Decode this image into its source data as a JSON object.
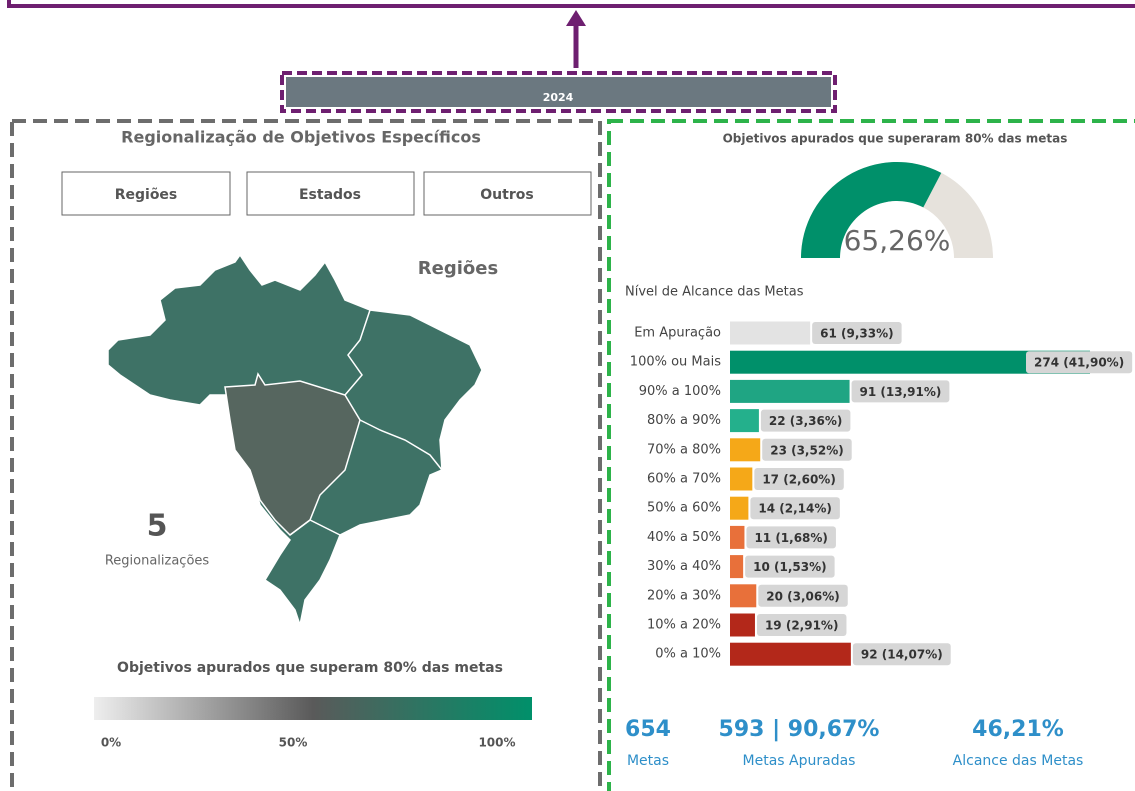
{
  "top_button": {
    "label": "2024"
  },
  "left_panel": {
    "title": "Regionalização de Objetivos Específicos",
    "buttons": [
      "Regiões",
      "Estados",
      "Outros"
    ],
    "map_label": "Regiões",
    "count": "5",
    "count_label": "Regionalizações",
    "legend_title": "Objetivos apurados que superam 80% das metas",
    "legend_ticks": [
      "0%",
      "50%",
      "100%"
    ]
  },
  "chart_data": [
    {
      "type": "gauge",
      "title": "Objetivos apurados que superaram 80% das metas",
      "value": 65.26,
      "value_label": "65,26%",
      "range": [
        0,
        100
      ],
      "color": "#00906a",
      "track_color": "#e6e2dc"
    },
    {
      "type": "bar",
      "orientation": "horizontal",
      "title": "Nível de Alcance das Metas",
      "categories": [
        "Em Apuração",
        "100% ou Mais",
        "90% a 100%",
        "80% a 90%",
        "70% a 80%",
        "60% a 70%",
        "50% a 60%",
        "40% a 50%",
        "30% a 40%",
        "20% a 30%",
        "10% a 20%",
        "0% a 10%"
      ],
      "values": [
        61,
        274,
        91,
        22,
        23,
        17,
        14,
        11,
        10,
        20,
        19,
        92
      ],
      "value_labels": [
        "61 (9,33%)",
        "274 (41,90%)",
        "91 (13,91%)",
        "22 (3,36%)",
        "23 (3,52%)",
        "17 (2,60%)",
        "14 (2,14%)",
        "11 (1,68%)",
        "10 (1,53%)",
        "20 (3,06%)",
        "19 (2,91%)",
        "92 (14,07%)"
      ],
      "colors": [
        "#e3e3e3",
        "#00906a",
        "#1fa583",
        "#24b08c",
        "#f5a818",
        "#f5a818",
        "#f5a818",
        "#e8703a",
        "#e8703a",
        "#e8703a",
        "#b3281a",
        "#b3281a"
      ]
    }
  ],
  "kpis": [
    {
      "value": "654",
      "label": "Metas"
    },
    {
      "value": "593 | 90,67%",
      "label": "Metas Apuradas"
    },
    {
      "value": "46,21%",
      "label": "Alcance das Metas"
    }
  ]
}
